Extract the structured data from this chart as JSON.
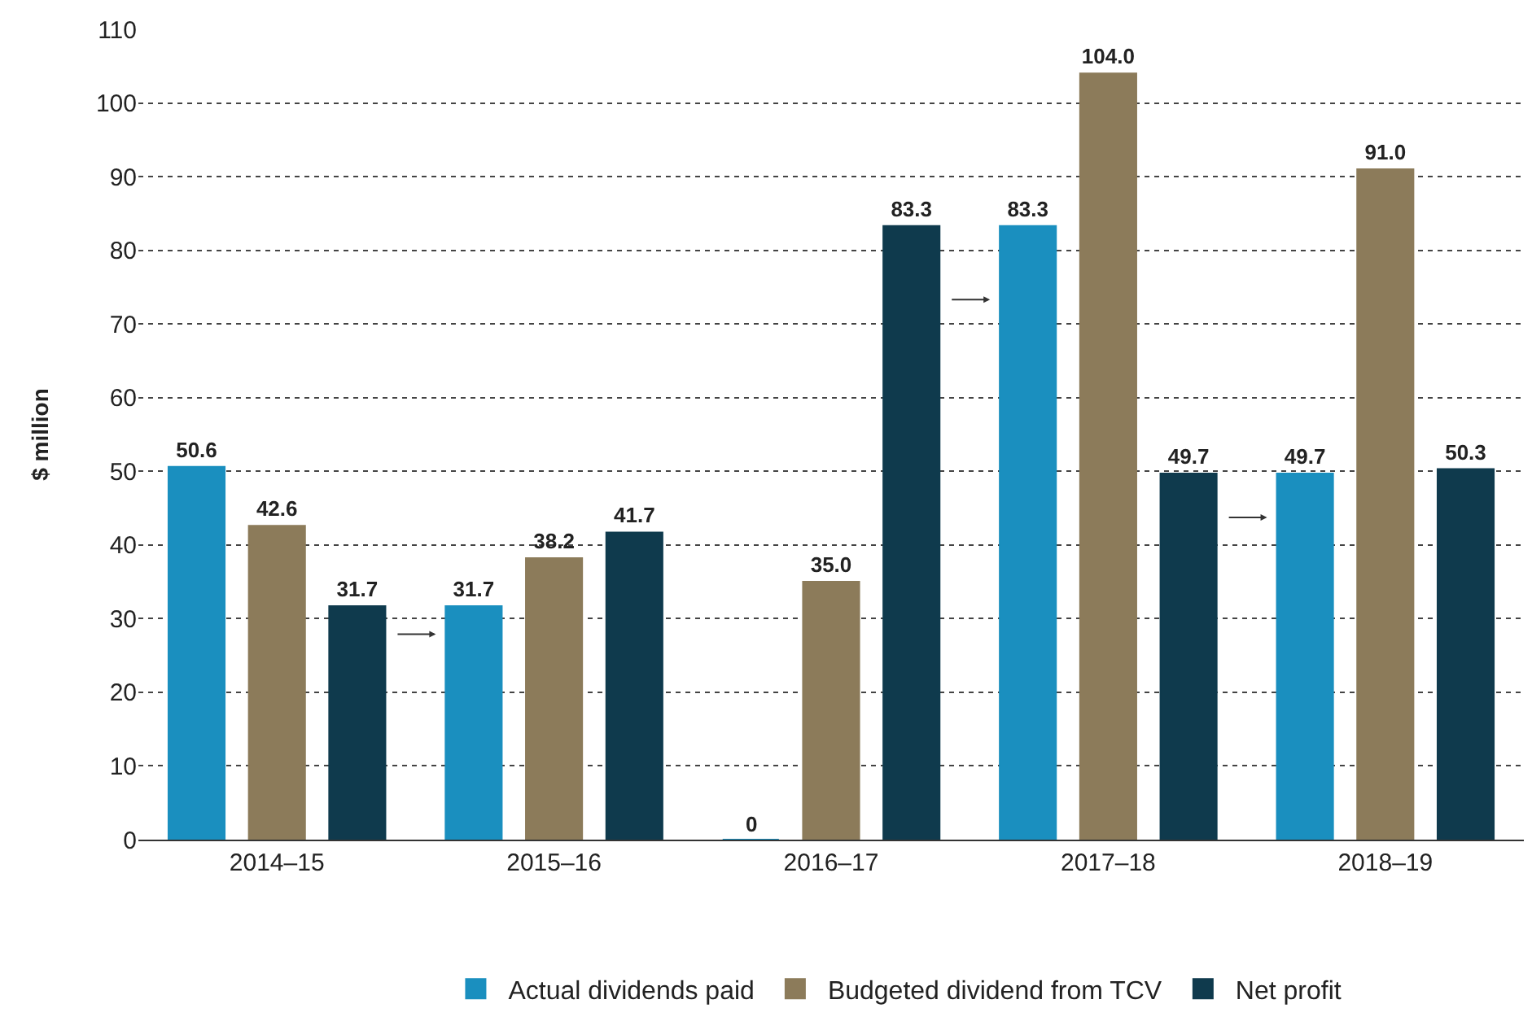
{
  "chart_data": {
    "type": "bar",
    "ylabel": "$ million",
    "categories": [
      "2014–15",
      "2015–16",
      "2016–17",
      "2017–18",
      "2018–19"
    ],
    "series": [
      {
        "name": "Actual dividends paid",
        "color": "#1a8fbf",
        "values": [
          50.6,
          31.7,
          0,
          83.3,
          49.7
        ],
        "value_labels": [
          "50.6",
          "31.7",
          "0",
          "83.3",
          "49.7"
        ]
      },
      {
        "name": "Budgeted dividend from TCV",
        "color": "#8c7b5a",
        "values": [
          42.6,
          38.2,
          35.0,
          104.0,
          91.0
        ],
        "value_labels": [
          "42.6",
          "38.2",
          "35.0",
          "104.0",
          "91.0"
        ]
      },
      {
        "name": "Net profit",
        "color": "#0f3a4d",
        "values": [
          31.7,
          41.7,
          83.3,
          49.7,
          50.3
        ],
        "value_labels": [
          "31.7",
          "41.7",
          "83.3",
          "49.7",
          "50.3"
        ]
      }
    ],
    "ylim": [
      0,
      110
    ],
    "yticks": [
      0,
      10,
      20,
      30,
      40,
      50,
      60,
      70,
      80,
      90,
      100,
      110
    ],
    "grid": "y",
    "legend": "bottom"
  }
}
